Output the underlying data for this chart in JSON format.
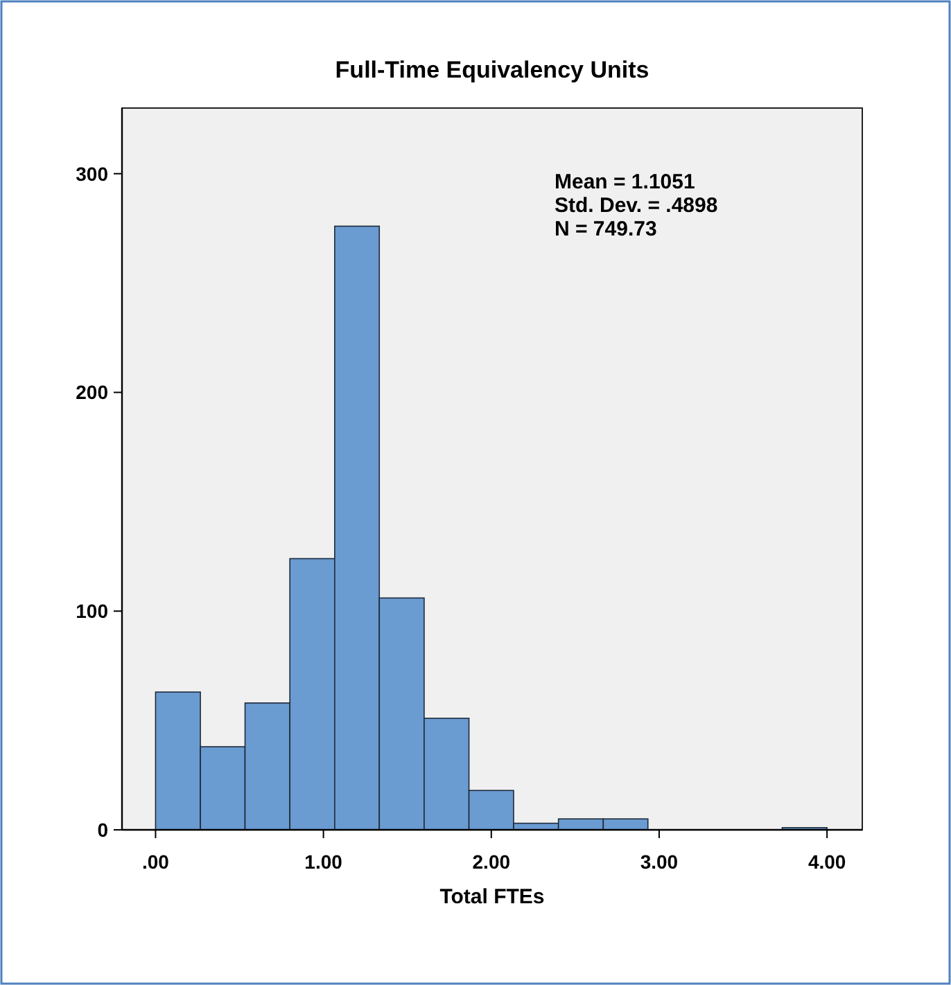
{
  "chart_data": {
    "type": "histogram",
    "title": "Full-Time Equivalency Units",
    "xlabel": "Total FTEs",
    "bins": [
      0,
      0.267,
      0.533,
      0.8,
      1.067,
      1.333,
      1.6,
      1.867,
      2.133,
      2.4,
      2.667,
      2.933,
      3.2,
      3.467,
      3.733,
      4.0
    ],
    "values": [
      63,
      38,
      58,
      124,
      276,
      106,
      51,
      18,
      3,
      5,
      5,
      0,
      0,
      0,
      1
    ],
    "color": "#6a9bd1",
    "xlim": [
      -0.2,
      4.21
    ],
    "xticks": [
      {
        "value": 0,
        "label": ".00"
      },
      {
        "value": 1,
        "label": "1.00"
      },
      {
        "value": 2,
        "label": "2.00"
      },
      {
        "value": 3,
        "label": "3.00"
      },
      {
        "value": 4,
        "label": "4.00"
      }
    ],
    "ylim": [
      0,
      330
    ],
    "yticks": [
      0,
      100,
      200,
      300
    ],
    "annotations": [
      "Mean = 1.1051",
      "Std. Dev. = .4898",
      "N = 749.73"
    ],
    "grid": false
  }
}
